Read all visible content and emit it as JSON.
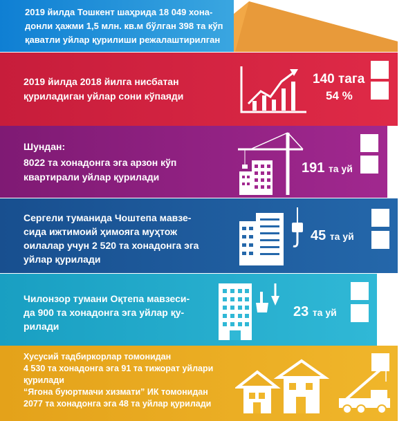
{
  "header": {
    "text": "2019 йилда Тошкент шаҳрида 18 049 хонадонли ҳажми 1,5 млн. кв.м бўлган 398 та кўп қаватли уйлар қурилиши режалаштирилган",
    "line1": "2019 йилда Тошкент шаҳрида 18 049 хона-",
    "line2": "донли ҳажми 1,5 млн. кв.м бўлган 398 та кўп",
    "line3": "қаватли уйлар қурилиши режалаштирилган"
  },
  "sections": [
    {
      "lines": [
        "2019 йилда 2018 йилга нисбатан",
        "қуриладиган уйлар сони кўпаяди"
      ],
      "stat1": "140 тага",
      "stat2": "54 %",
      "icon": "growth-chart-icon"
    },
    {
      "lines": [
        "Шундан:",
        "8022 та хонадонга эга арзон кўп",
        "квартирали уйлар қурилади"
      ],
      "stat_num": "191",
      "stat_unit": "та уй",
      "icon": "construction-crane-icon"
    },
    {
      "lines": [
        "Сергели туманида Чоштепа мавзе-",
        "сида ижтимоий ҳимояга муҳтож",
        "оилалар учун 2 520 та хонадонга эга",
        "уйлар қурилади"
      ],
      "stat_num": "45",
      "stat_unit": "та уй",
      "icon": "buildings-hook-icon"
    },
    {
      "lines": [
        "Чилонзор тумани Оқтепа мавзеси-",
        "да 900 та хонадонга эга уйлар қу-",
        "рилади"
      ],
      "stat_num": "23",
      "stat_unit": "та уй",
      "icon": "building-tools-icon"
    },
    {
      "lines": [
        "Хусусий тадбиркорлар томонидан",
        "4 530 та хонадонга эга 91 та тижорат уйлари",
        "қурилади",
        "“Ягона буюртмачи хизмати” ИК томонидан",
        "2077 та хонадонга эга 48 та уйлар қурилади"
      ],
      "icon": "houses-crane-truck-icon"
    }
  ],
  "colors": {
    "header": "#1f8fd6",
    "roof": "#f0aa4a",
    "red": "#d6223f",
    "purple": "#8e1f7e",
    "blue": "#1f5a9a",
    "cyan": "#1fa9c9",
    "yellow": "#e8a91b"
  }
}
